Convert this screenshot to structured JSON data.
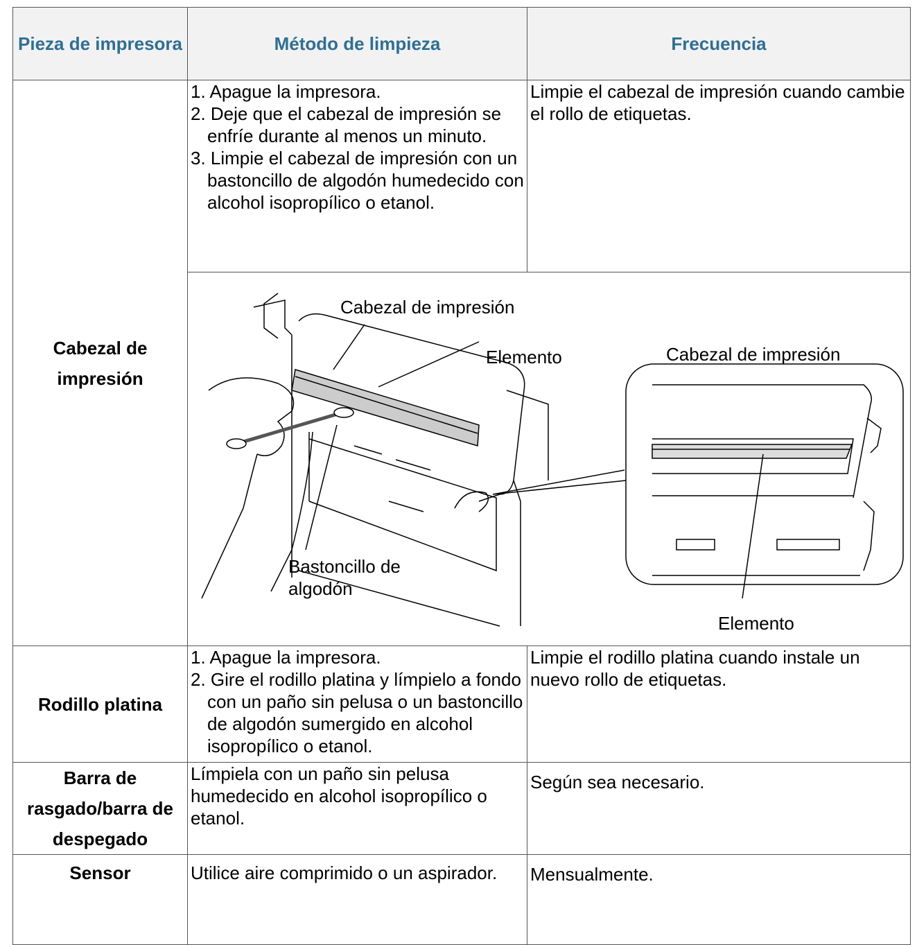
{
  "table": {
    "header": [
      "Pieza de impresora",
      "Método de limpieza",
      "Frecuencia"
    ],
    "rows": [
      {
        "part": "Cabezal de impresión",
        "method": [
          "1. Apague la impresora.",
          "2. Deje que el cabezal de impresión se enfríe durante al menos un minuto.",
          "3. Limpie el cabezal de impresión con un bastoncillo de algodón humedecido con alcohol isopropílico o etanol."
        ],
        "frequency": "Limpie el cabezal de impresión cuando cambie el rollo de etiquetas."
      },
      {
        "part": "Rodillo platina",
        "method": [
          "1. Apague la impresora.",
          "2. Gire el rodillo platina y límpielo a fondo con un paño sin pelusa o un bastoncillo de algodón sumergido en alcohol isopropílico o etanol."
        ],
        "frequency": "Limpie el rodillo platina cuando instale un nuevo rollo de etiquetas."
      },
      {
        "part": "Barra de rasgado/barra de despegado",
        "method": [
          "Límpiela con un paño sin pelusa humedecido en alcohol isopropílico o etanol."
        ],
        "frequency": "Según sea necesario."
      },
      {
        "part": "Sensor",
        "method": [
          "Utilice aire comprimido o un aspirador."
        ],
        "frequency": "Mensualmente."
      }
    ]
  },
  "figure": {
    "labels": [
      "Cabezal de impresión",
      "Elemento",
      "Cabezal de impresión",
      "Bastoncillo de algodón",
      "Elemento"
    ]
  }
}
